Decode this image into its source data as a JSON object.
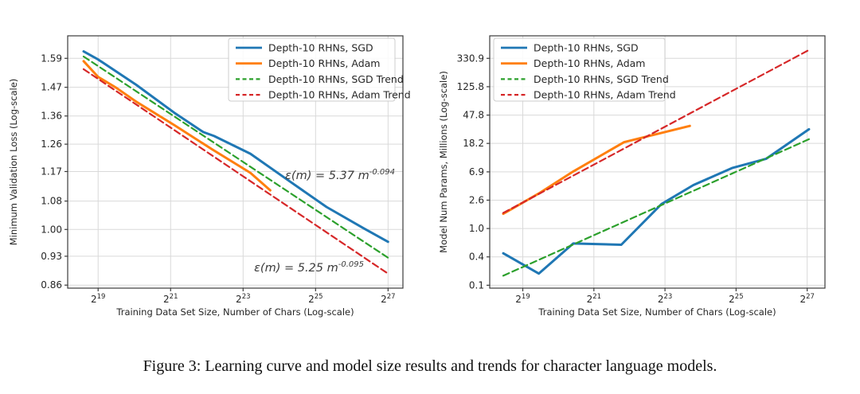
{
  "figure": {
    "caption": "Figure 3: Learning curve and model size results and trends for character language models."
  },
  "colors": {
    "sgd": "#1f77b4",
    "adam": "#ff7f0e",
    "sgd_trend": "#2ca02c",
    "adam_trend": "#d62728",
    "grid": "#d9d9d9",
    "spine": "#3b3b3b",
    "tick_text": "#262626",
    "annotation_text": "#3a3a3a"
  },
  "chart_data": [
    {
      "type": "line",
      "title": "",
      "xlabel": "Training Data Set Size, Number of Chars (Log-scale)",
      "ylabel": "Minimum Validation Loss (Log-scale)",
      "x_scale": "log2-exponent",
      "y_scale": "log",
      "grid": true,
      "xlim_exp": [
        18.16,
        27.41
      ],
      "ylim": [
        0.853,
        1.69
      ],
      "x_ticks": [
        {
          "exp": 19,
          "base": "2",
          "sup": "19"
        },
        {
          "exp": 21,
          "base": "2",
          "sup": "21"
        },
        {
          "exp": 23,
          "base": "2",
          "sup": "23"
        },
        {
          "exp": 25,
          "base": "2",
          "sup": "25"
        },
        {
          "exp": 27,
          "base": "2",
          "sup": "27"
        }
      ],
      "y_ticks": [
        {
          "value": 1.59,
          "label": "1.59"
        },
        {
          "value": 1.47,
          "label": "1.47"
        },
        {
          "value": 1.36,
          "label": "1.36"
        },
        {
          "value": 1.26,
          "label": "1.26"
        },
        {
          "value": 1.17,
          "label": "1.17"
        },
        {
          "value": 1.08,
          "label": "1.08"
        },
        {
          "value": 1.0,
          "label": "1.00"
        },
        {
          "value": 0.93,
          "label": "0.93"
        },
        {
          "value": 0.86,
          "label": "0.86"
        }
      ],
      "legend_position": "top-right",
      "legend": [
        "Depth-10 RHNs, SGD",
        "Depth-10 RHNs, Adam",
        "Depth-10 RHNs, SGD Trend",
        "Depth-10 RHNs, Adam Trend"
      ],
      "series": [
        {
          "name": "Depth-10 RHNs, SGD",
          "color": "sgd",
          "style": "solid",
          "points": [
            [
              18.6,
              1.62
            ],
            [
              19.0,
              1.585
            ],
            [
              20.05,
              1.48
            ],
            [
              21.1,
              1.372
            ],
            [
              21.9,
              1.302
            ],
            [
              22.2,
              1.288
            ],
            [
              23.2,
              1.228
            ],
            [
              24.25,
              1.142
            ],
            [
              25.3,
              1.063
            ],
            [
              26.35,
              1.002
            ],
            [
              27.0,
              0.967
            ]
          ]
        },
        {
          "name": "Depth-10 RHNs, Adam",
          "color": "adam",
          "style": "solid",
          "points": [
            [
              18.6,
              1.578
            ],
            [
              19.0,
              1.512
            ],
            [
              19.5,
              1.468
            ],
            [
              20.05,
              1.414
            ],
            [
              21.1,
              1.327
            ],
            [
              22.15,
              1.242
            ],
            [
              23.2,
              1.166
            ],
            [
              23.75,
              1.112
            ]
          ]
        },
        {
          "name": "Depth-10 RHNs, SGD Trend",
          "color": "sgd_trend",
          "style": "dashed",
          "points": [
            [
              18.6,
              1.598
            ],
            [
              27.02,
              0.925
            ]
          ]
        },
        {
          "name": "Depth-10 RHNs, Adam Trend",
          "color": "adam_trend",
          "style": "dashed",
          "points": [
            [
              18.6,
              1.544
            ],
            [
              27.02,
              0.886
            ]
          ]
        }
      ],
      "annotations": [
        {
          "text": "ε(m) = 5.37 m",
          "sup": "-0.094",
          "x": 496,
          "y": 225,
          "anchor": "end"
        },
        {
          "text": "ε(m) = 5.25 m",
          "sup": "-0.095",
          "x": 457,
          "y": 341,
          "anchor": "end"
        }
      ]
    },
    {
      "type": "line",
      "title": "",
      "xlabel": "Training Data Set Size, Number of Chars (Log-scale)",
      "ylabel": "Model Num Params, Millions (Log-scale)",
      "x_scale": "log2-exponent",
      "y_scale": "log",
      "grid": true,
      "xlim_exp": [
        18.07,
        27.5
      ],
      "ylim": [
        0.131,
        713
      ],
      "x_ticks": [
        {
          "exp": 19,
          "base": "2",
          "sup": "19"
        },
        {
          "exp": 21,
          "base": "2",
          "sup": "21"
        },
        {
          "exp": 23,
          "base": "2",
          "sup": "23"
        },
        {
          "exp": 25,
          "base": "2",
          "sup": "25"
        },
        {
          "exp": 27,
          "base": "2",
          "sup": "27"
        }
      ],
      "y_ticks": [
        {
          "value": 330.9,
          "label": "330.9"
        },
        {
          "value": 125.8,
          "label": "125.8"
        },
        {
          "value": 47.8,
          "label": "47.8"
        },
        {
          "value": 18.2,
          "label": "18.2"
        },
        {
          "value": 6.9,
          "label": "6.9"
        },
        {
          "value": 2.63,
          "label": "2.6"
        },
        {
          "value": 1.0,
          "label": "1.0"
        },
        {
          "value": 0.3802,
          "label": "0.4"
        },
        {
          "value": 0.1446,
          "label": "0.1"
        }
      ],
      "legend_position": "top-left",
      "legend": [
        "Depth-10 RHNs, SGD",
        "Depth-10 RHNs, Adam",
        "Depth-10 RHNs, SGD Trend",
        "Depth-10 RHNs, Adam Trend"
      ],
      "series": [
        {
          "name": "Depth-10 RHNs, SGD",
          "color": "sgd",
          "style": "solid",
          "points": [
            [
              18.45,
              0.43
            ],
            [
              19.45,
              0.215
            ],
            [
              20.42,
              0.6
            ],
            [
              21.77,
              0.575
            ],
            [
              22.9,
              2.3
            ],
            [
              23.8,
              4.4
            ],
            [
              24.9,
              7.9
            ],
            [
              25.85,
              10.8
            ],
            [
              27.05,
              29.5
            ]
          ]
        },
        {
          "name": "Depth-10 RHNs, Adam",
          "color": "adam",
          "style": "solid",
          "points": [
            [
              18.45,
              1.65
            ],
            [
              19.45,
              3.3
            ],
            [
              20.42,
              7.0
            ],
            [
              21.85,
              19.0
            ],
            [
              23.7,
              33.0
            ]
          ]
        },
        {
          "name": "Depth-10 RHNs, SGD Trend",
          "color": "sgd_trend",
          "style": "dashed",
          "points": [
            [
              18.45,
              0.2
            ],
            [
              27.05,
              21.0
            ]
          ]
        },
        {
          "name": "Depth-10 RHNs, Adam Trend",
          "color": "adam_trend",
          "style": "dashed",
          "points": [
            [
              18.45,
              1.7
            ],
            [
              27.05,
              440.0
            ]
          ]
        }
      ],
      "annotations": []
    }
  ]
}
